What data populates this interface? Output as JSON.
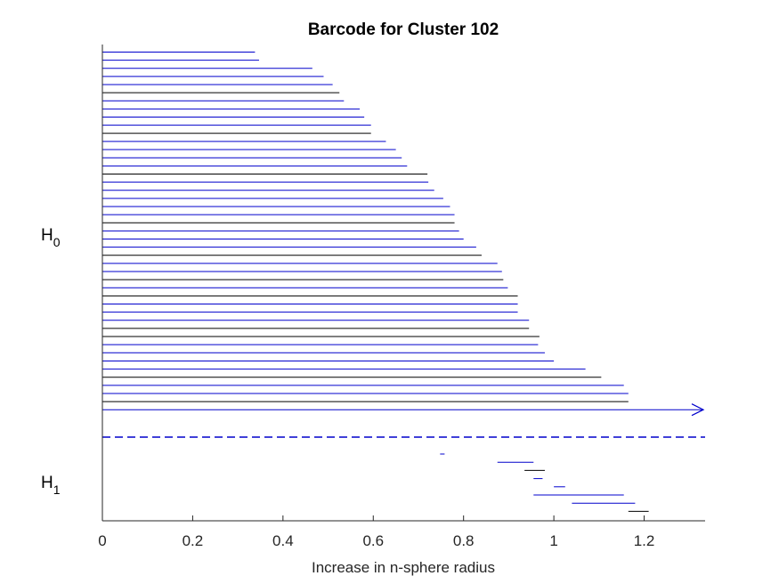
{
  "chart_data": {
    "type": "barcode",
    "title": "Barcode for Cluster 102",
    "xlabel": "Increase in n-sphere radius",
    "xlim": [
      0,
      1.335
    ],
    "xticks": [
      {
        "value": 0,
        "label": "0"
      },
      {
        "value": 0.2,
        "label": "0.2"
      },
      {
        "value": 0.4,
        "label": "0.4"
      },
      {
        "value": 0.6,
        "label": "0.6"
      },
      {
        "value": 0.8,
        "label": "0.8"
      },
      {
        "value": 1,
        "label": "1"
      },
      {
        "value": 1.2,
        "label": "1.2"
      }
    ],
    "groups": [
      {
        "name": "H",
        "subscript": "0"
      },
      {
        "name": "H",
        "subscript": "1"
      }
    ],
    "h0_bars": [
      {
        "birth": 0,
        "death": 0.338,
        "color": "#0000cc"
      },
      {
        "birth": 0,
        "death": 0.347,
        "color": "#0000cc"
      },
      {
        "birth": 0,
        "death": 0.465,
        "color": "#0000cc"
      },
      {
        "birth": 0,
        "death": 0.49,
        "color": "#0000cc"
      },
      {
        "birth": 0,
        "death": 0.51,
        "color": "#0000cc"
      },
      {
        "birth": 0,
        "death": 0.525,
        "color": "#000000"
      },
      {
        "birth": 0,
        "death": 0.535,
        "color": "#0000cc"
      },
      {
        "birth": 0,
        "death": 0.57,
        "color": "#0000cc"
      },
      {
        "birth": 0,
        "death": 0.58,
        "color": "#0000cc"
      },
      {
        "birth": 0,
        "death": 0.595,
        "color": "#0000cc"
      },
      {
        "birth": 0,
        "death": 0.595,
        "color": "#000000"
      },
      {
        "birth": 0,
        "death": 0.628,
        "color": "#0000cc"
      },
      {
        "birth": 0,
        "death": 0.65,
        "color": "#0000cc"
      },
      {
        "birth": 0,
        "death": 0.663,
        "color": "#0000cc"
      },
      {
        "birth": 0,
        "death": 0.675,
        "color": "#0000cc"
      },
      {
        "birth": 0,
        "death": 0.72,
        "color": "#000000"
      },
      {
        "birth": 0,
        "death": 0.722,
        "color": "#0000cc"
      },
      {
        "birth": 0,
        "death": 0.735,
        "color": "#0000cc"
      },
      {
        "birth": 0,
        "death": 0.755,
        "color": "#0000cc"
      },
      {
        "birth": 0,
        "death": 0.77,
        "color": "#0000cc"
      },
      {
        "birth": 0,
        "death": 0.78,
        "color": "#0000cc"
      },
      {
        "birth": 0,
        "death": 0.78,
        "color": "#000000"
      },
      {
        "birth": 0,
        "death": 0.79,
        "color": "#0000cc"
      },
      {
        "birth": 0,
        "death": 0.8,
        "color": "#0000cc"
      },
      {
        "birth": 0,
        "death": 0.828,
        "color": "#0000cc"
      },
      {
        "birth": 0,
        "death": 0.84,
        "color": "#000000"
      },
      {
        "birth": 0,
        "death": 0.875,
        "color": "#0000cc"
      },
      {
        "birth": 0,
        "death": 0.885,
        "color": "#0000cc"
      },
      {
        "birth": 0,
        "death": 0.888,
        "color": "#000000"
      },
      {
        "birth": 0,
        "death": 0.898,
        "color": "#0000cc"
      },
      {
        "birth": 0,
        "death": 0.92,
        "color": "#000000"
      },
      {
        "birth": 0,
        "death": 0.92,
        "color": "#0000cc"
      },
      {
        "birth": 0,
        "death": 0.92,
        "color": "#0000cc"
      },
      {
        "birth": 0,
        "death": 0.945,
        "color": "#0000cc"
      },
      {
        "birth": 0,
        "death": 0.945,
        "color": "#000000"
      },
      {
        "birth": 0,
        "death": 0.968,
        "color": "#000000"
      },
      {
        "birth": 0,
        "death": 0.965,
        "color": "#0000cc"
      },
      {
        "birth": 0,
        "death": 0.98,
        "color": "#0000cc"
      },
      {
        "birth": 0,
        "death": 1.0,
        "color": "#0000cc"
      },
      {
        "birth": 0,
        "death": 1.07,
        "color": "#0000cc"
      },
      {
        "birth": 0,
        "death": 1.105,
        "color": "#000000"
      },
      {
        "birth": 0,
        "death": 1.155,
        "color": "#0000cc"
      },
      {
        "birth": 0,
        "death": 1.165,
        "color": "#0000cc"
      },
      {
        "birth": 0,
        "death": 1.165,
        "color": "#000000"
      },
      {
        "birth": 0,
        "death": null,
        "color": "#0000cc",
        "infinite": true
      }
    ],
    "h1_bars": [
      {
        "birth": 0.748,
        "death": 0.758,
        "color": "#0000cc"
      },
      {
        "birth": 0.875,
        "death": 0.955,
        "color": "#0000cc"
      },
      {
        "birth": 0.935,
        "death": 0.98,
        "color": "#000000"
      },
      {
        "birth": 0.955,
        "death": 0.975,
        "color": "#0000cc"
      },
      {
        "birth": 1.0,
        "death": 1.025,
        "color": "#0000cc"
      },
      {
        "birth": 0.955,
        "death": 1.155,
        "color": "#0000cc"
      },
      {
        "birth": 1.04,
        "death": 1.18,
        "color": "#0000cc"
      },
      {
        "birth": 1.165,
        "death": 1.21,
        "color": "#000000"
      }
    ],
    "divider_color": "#0000cc",
    "axis_color": "#262626"
  }
}
